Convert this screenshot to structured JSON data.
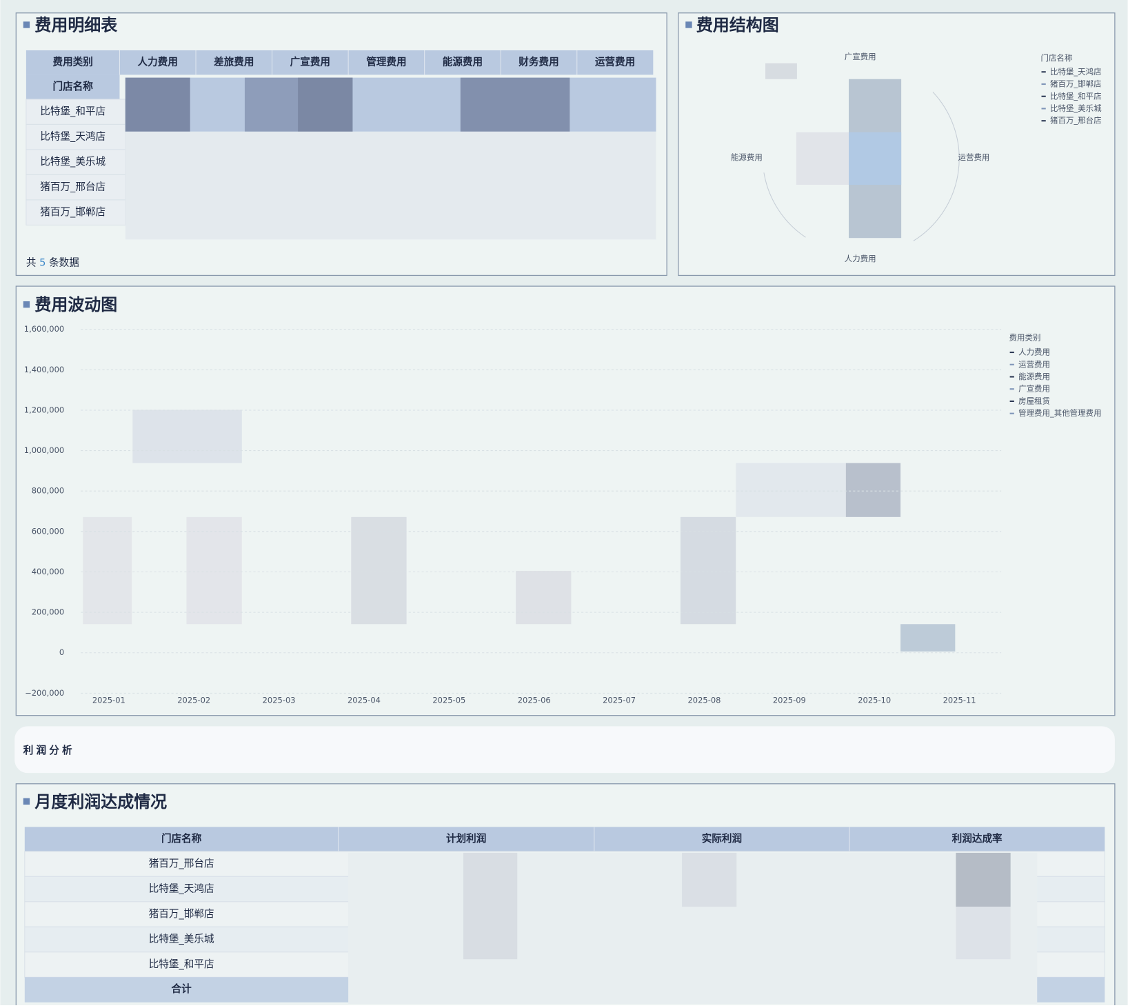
{
  "expense_table": {
    "title": "费用明细表",
    "corner_header": "费用类别",
    "row_header": "门店名称",
    "columns": [
      "人力费用",
      "差旅费用",
      "广宣费用",
      "管理费用",
      "能源费用",
      "财务费用",
      "运营费用"
    ],
    "rows": [
      "比特堡_和平店",
      "比特堡_天鸿店",
      "比特堡_美乐城",
      "猪百万_邢台店",
      "猪百万_邯郸店"
    ],
    "footer": {
      "prefix": "共",
      "count": 5,
      "suffix": "条数据"
    }
  },
  "structure_chart": {
    "title": "费用结构图",
    "axes": [
      "广宣费用",
      "运营费用",
      "人力费用",
      "能源费用"
    ],
    "legend_title": "门店名称",
    "legend": [
      "比特堡_天鸿店",
      "猪百万_邯郸店",
      "比特堡_和平店",
      "比特堡_美乐城",
      "猪百万_邢台店"
    ]
  },
  "chart_data": {
    "type": "line",
    "title": "费用波动图",
    "x": [
      "2025-01",
      "2025-02",
      "2025-03",
      "2025-04",
      "2025-05",
      "2025-06",
      "2025-07",
      "2025-08",
      "2025-09",
      "2025-10",
      "2025-11"
    ],
    "ylim": [
      -200000,
      1600000
    ],
    "yticks": [
      {
        "value": -200000,
        "label": "−200,000"
      },
      0,
      {
        "value": 200000,
        "label": "200,000"
      },
      {
        "value": 400000,
        "label": "400,000"
      },
      {
        "value": 600000,
        "label": "600,000"
      },
      {
        "value": 800000,
        "label": "800,000"
      },
      {
        "value": 1000000,
        "label": "1,000,000"
      },
      {
        "value": 1200000,
        "label": "1,200,000"
      },
      {
        "value": 1400000,
        "label": "1,400,000"
      },
      {
        "value": 1600000,
        "label": "1,600,000"
      }
    ],
    "grid": true,
    "legend_title": "费用类别",
    "legend": [
      "人力费用",
      "运营费用",
      "能源费用",
      "广宣费用",
      "房屋租赁",
      "管理费用_其他管理费用"
    ]
  },
  "section": {
    "title": "利润分析"
  },
  "profit_table": {
    "title": "月度利润达成情况",
    "columns": [
      "门店名称",
      "计划利润",
      "实际利润",
      "利润达成率"
    ],
    "rows": [
      "猪百万_邢台店",
      "比特堡_天鸿店",
      "猪百万_邯郸店",
      "比特堡_美乐城",
      "比特堡_和平店"
    ],
    "total_label": "合计"
  }
}
